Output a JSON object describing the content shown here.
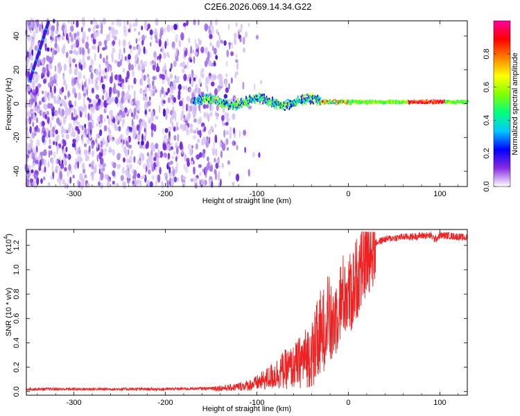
{
  "title": "C2E6.2026.069.14.34.G22",
  "chart_data": [
    {
      "type": "heatmap",
      "name": "spectrogram",
      "xlabel": "Height of straight line (km)",
      "ylabel": "Frequency (Hz)",
      "xlim": [
        -352,
        130
      ],
      "ylim": [
        -49,
        49
      ],
      "xticks": [
        -300,
        -200,
        -100,
        0,
        100
      ],
      "yticks": [
        -40,
        -20,
        0,
        20,
        40
      ],
      "colorbar": {
        "label": "Normalized spectral amplitude",
        "range": [
          0.0,
          1.0
        ],
        "ticks": [
          0.0,
          0.2,
          0.4,
          0.6,
          0.8
        ],
        "tick_labels": [
          "0.0",
          "0.2",
          "0.4",
          "0.6",
          "0.8"
        ],
        "colormap": [
          "#ffffff",
          "#8a2be2",
          "#0000ff",
          "#00c8ff",
          "#00ff80",
          "#80ff00",
          "#ffff00",
          "#ff8000",
          "#ff0000",
          "#ff00a0"
        ]
      },
      "features": {
        "noise_region_x": [
          -352,
          -115
        ],
        "signal_track_x": [
          -170,
          130
        ],
        "signal_track_freq_hz": 1
      }
    },
    {
      "type": "line",
      "name": "snr",
      "xlabel": "Height of straight line (km)",
      "ylabel": "SNR (10 * v/v)",
      "scale_label": "(x10",
      "scale_exponent": "4",
      "xlim": [
        -352,
        130
      ],
      "ylim": [
        -0.03,
        1.33
      ],
      "xticks": [
        -300,
        -200,
        -100,
        0,
        100
      ],
      "yticks": [
        0.0,
        0.2,
        0.4,
        0.6,
        0.8,
        1.0,
        1.2
      ],
      "ytick_labels": [
        "0.0",
        "0.2",
        "0.4",
        "0.6",
        "0.8",
        "1.0",
        "1.2"
      ],
      "color": "#ee2222",
      "series": [
        {
          "name": "SNR",
          "x": [
            -352,
            -300,
            -250,
            -200,
            -160,
            -130,
            -110,
            -100,
            -90,
            -80,
            -70,
            -60,
            -50,
            -40,
            -35,
            -30,
            -25,
            -22,
            -20,
            -15,
            -10,
            -5,
            0,
            5,
            10,
            15,
            20,
            25,
            30,
            40,
            50,
            60,
            70,
            80,
            90,
            95,
            100,
            110,
            120,
            130
          ],
          "y": [
            0.02,
            0.02,
            0.02,
            0.02,
            0.025,
            0.03,
            0.05,
            0.07,
            0.1,
            0.14,
            0.18,
            0.2,
            0.26,
            0.32,
            0.38,
            0.45,
            0.55,
            0.7,
            0.5,
            0.6,
            0.72,
            0.8,
            0.78,
            0.84,
            0.95,
            1.05,
            1.12,
            1.18,
            1.22,
            1.25,
            1.26,
            1.27,
            1.27,
            1.28,
            1.28,
            1.25,
            1.28,
            1.28,
            1.27,
            1.26
          ]
        }
      ]
    }
  ]
}
